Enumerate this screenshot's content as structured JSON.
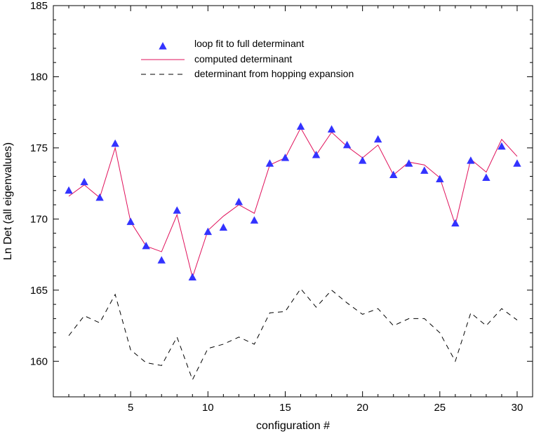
{
  "chart_data": {
    "type": "line",
    "title": "",
    "xlabel": "configuration #",
    "ylabel": "Ln Det (all eigenvalues)",
    "xlim": [
      0,
      31
    ],
    "ylim": [
      157.5,
      185
    ],
    "x_ticks": [
      5,
      10,
      15,
      20,
      25,
      30
    ],
    "y_ticks": [
      160,
      165,
      170,
      175,
      180,
      185
    ],
    "legend_position": "top-center",
    "x": [
      1,
      2,
      3,
      4,
      5,
      6,
      7,
      8,
      9,
      10,
      11,
      12,
      13,
      14,
      15,
      16,
      17,
      18,
      19,
      20,
      21,
      22,
      23,
      24,
      25,
      26,
      27,
      28,
      29,
      30
    ],
    "series": [
      {
        "name": "loop fit to full determinant",
        "style": "markers",
        "marker": "triangle",
        "color": "#3333ff",
        "values": [
          172.0,
          172.6,
          171.5,
          175.3,
          169.8,
          168.1,
          167.1,
          170.6,
          165.9,
          169.1,
          169.4,
          171.2,
          169.9,
          173.9,
          174.3,
          176.5,
          174.5,
          176.3,
          175.2,
          174.1,
          175.6,
          173.1,
          173.9,
          173.4,
          172.8,
          169.7,
          174.1,
          172.9,
          175.1,
          173.9
        ]
      },
      {
        "name": "computed determinant",
        "style": "solid",
        "color": "#e0105a",
        "values": [
          171.6,
          172.4,
          171.5,
          175.0,
          169.8,
          168.1,
          167.7,
          170.3,
          165.9,
          169.2,
          170.2,
          171.0,
          170.4,
          173.8,
          174.3,
          176.4,
          174.5,
          176.1,
          175.1,
          174.3,
          175.2,
          173.1,
          174.0,
          173.8,
          172.9,
          169.6,
          174.2,
          173.3,
          175.6,
          174.4
        ]
      },
      {
        "name": "determinant from hopping expansion",
        "style": "dashed",
        "color": "#000000",
        "values": [
          161.8,
          163.2,
          162.7,
          164.7,
          160.8,
          159.9,
          159.7,
          161.7,
          158.7,
          160.9,
          161.2,
          161.7,
          161.2,
          163.4,
          163.5,
          165.1,
          163.8,
          165.0,
          164.1,
          163.3,
          163.7,
          162.5,
          163.0,
          163.0,
          162.0,
          160.0,
          163.4,
          162.5,
          163.7,
          162.9
        ]
      }
    ]
  }
}
